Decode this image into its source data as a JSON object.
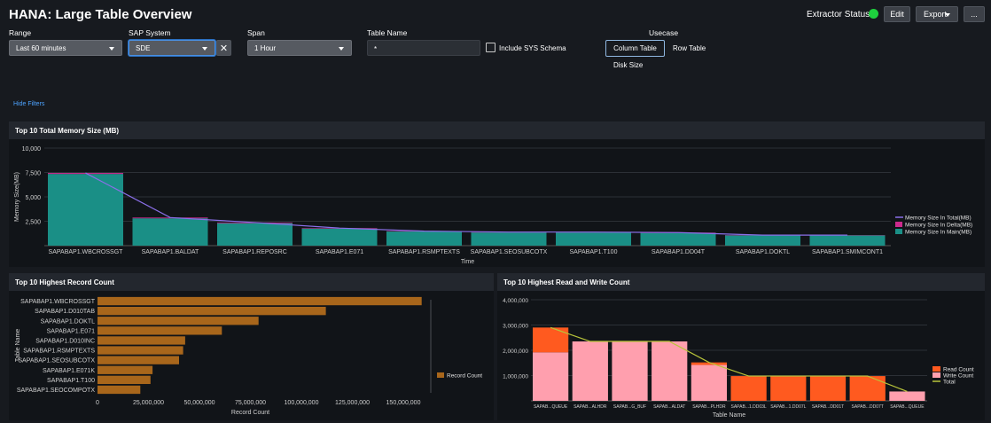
{
  "header": {
    "title": "HANA: Large Table Overview",
    "extractor_status_label": "Extractor Status :",
    "status_color": "#1ed13e",
    "edit_label": "Edit",
    "export_label": "Export",
    "more_label": "..."
  },
  "filters": {
    "range_label": "Range",
    "range_value": "Last 60 minutes",
    "sap_system_label": "SAP System",
    "sap_system_value": "SDE",
    "span_label": "Span",
    "span_value": "1 Hour",
    "table_name_label": "Table Name",
    "table_name_value": "*",
    "include_sys_label": "Include SYS Schema",
    "usecase_label": "Usecase",
    "usecase_options": [
      "Column Table",
      "Row Table",
      "Disk Size"
    ],
    "hide_filters_label": "Hide Filters"
  },
  "panels": {
    "memory_title": "Top 10 Total Memory Size (MB)",
    "record_title": "Top 10 Highest Record Count",
    "rw_title": "Top 10 Highest Read and Write Count"
  },
  "colors": {
    "teal": "#1a8f86",
    "magenta": "#cc2a8d",
    "purple_line": "#8a6fe8",
    "orange_bar": "#a8661b",
    "read": "#ff5a1f",
    "write": "#ff9fae",
    "total_line": "#b8c43a"
  },
  "chart_data": [
    {
      "type": "bar",
      "title": "Top 10 Total Memory Size (MB)",
      "xlabel": "Time",
      "ylabel": "Memory Size(MB)",
      "ylim": [
        0,
        10000
      ],
      "yticks": [
        2500,
        5000,
        7500,
        10000
      ],
      "ytick_labels": [
        "2,500",
        "5,000",
        "7,500",
        "10,000"
      ],
      "categories": [
        "SAPABAP1.WBCROSSGT",
        "SAPABAP1.BALDAT",
        "SAPABAP1.REPOSRC",
        "SAPABAP1.E071",
        "SAPABAP1.RSMPTEXTS",
        "SAPABAP1.SEOSUBCOTX",
        "SAPABAP1.T100",
        "SAPABAP1.DD04T",
        "SAPABAP1.DOKTL",
        "SAPABAP1.SMIMCONT1"
      ],
      "series": [
        {
          "name": "Memory Size In Main(MB)",
          "type": "bar",
          "values": [
            7350,
            2800,
            2300,
            1750,
            1450,
            1350,
            1350,
            1300,
            1050,
            1050
          ]
        },
        {
          "name": "Memory Size In Delta(MB)",
          "type": "bar",
          "values": [
            100,
            80,
            70,
            50,
            40,
            40,
            40,
            40,
            30,
            30
          ]
        },
        {
          "name": "Memory Size In Total(MB)",
          "type": "line",
          "values": [
            7450,
            2880,
            2370,
            1800,
            1490,
            1390,
            1390,
            1340,
            1080,
            1080
          ]
        }
      ],
      "legend": "right"
    },
    {
      "type": "bar",
      "orientation": "horizontal",
      "title": "Top 10 Highest Record Count",
      "xlabel": "Record Count",
      "ylabel": "Table Name",
      "xlim": [
        0,
        150000000
      ],
      "xticks": [
        0,
        25000000,
        50000000,
        75000000,
        100000000,
        125000000,
        150000000
      ],
      "xtick_labels": [
        "0",
        "25,000,000",
        "50,000,000",
        "75,000,000",
        "100,000,000",
        "125,000,000",
        "150,000,000"
      ],
      "categories": [
        "SAPABAP1.WBCROSSGT",
        "SAPABAP1.D010TAB",
        "SAPABAP1.DOKTL",
        "SAPABAP1.E071",
        "SAPABAP1.D010INC",
        "SAPABAP1.RSMPTEXTS",
        "SAPABAP1.SEOSUBCOTX",
        "SAPABAP1.E071K",
        "SAPABAP1.T100",
        "SAPABAP1.SEOCOMPOTX"
      ],
      "series": [
        {
          "name": "Record Count",
          "values": [
            159000000,
            112000000,
            79000000,
            61000000,
            43000000,
            42000000,
            40000000,
            27000000,
            26000000,
            21000000
          ]
        }
      ],
      "legend": "right"
    },
    {
      "type": "bar",
      "stacked": true,
      "title": "Top 10 Highest Read and Write Count",
      "xlabel": "Table Name",
      "ylim": [
        0,
        4000000
      ],
      "yticks": [
        1000000,
        2000000,
        3000000,
        4000000
      ],
      "ytick_labels": [
        "1,000,000",
        "2,000,000",
        "3,000,000",
        "4,000,000"
      ],
      "categories": [
        "SAPAB...QUEUE",
        "SAPAB...ALHDR",
        "SAPAB...G_BUF",
        "SAPAB...ALDAT",
        "SAPAB...PLHDR",
        "SAPAB...1.DD03L",
        "SAPAB...1.DD07L",
        "SAPAB...DD01T",
        "SAPAB...DD07T",
        "SAPAB...QUEUE"
      ],
      "series": [
        {
          "name": "Write Count",
          "type": "bar",
          "values": [
            1920000,
            2350000,
            2350000,
            2350000,
            1420000,
            0,
            0,
            0,
            0,
            370000
          ]
        },
        {
          "name": "Read Count",
          "type": "bar",
          "values": [
            980000,
            0,
            0,
            0,
            100000,
            980000,
            980000,
            980000,
            980000,
            0
          ]
        },
        {
          "name": "Total",
          "type": "line",
          "values": [
            2900000,
            2350000,
            2350000,
            2350000,
            1520000,
            980000,
            980000,
            980000,
            980000,
            370000
          ]
        }
      ],
      "legend": "right"
    }
  ]
}
